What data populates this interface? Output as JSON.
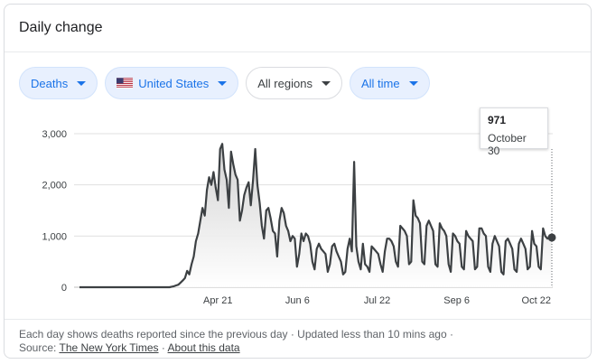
{
  "header": {
    "title": "Daily change"
  },
  "filters": {
    "metric": "Deaths",
    "country": "United States",
    "region": "All regions",
    "range": "All time"
  },
  "tooltip": {
    "value": "971",
    "date": "October 30"
  },
  "footer": {
    "line1": "Each day shows deaths reported since the previous day · Updated less than 10 mins ago ·",
    "source_label": "Source:",
    "source_link": "The New York Times",
    "sep": "·",
    "about_link": "About this data"
  },
  "colors": {
    "line": "#3c4043",
    "fill_top": "#d5d5d5",
    "fill_bottom": "#ffffff",
    "grid": "#e0e0e0",
    "accent": "#1a73e8"
  },
  "chart_data": {
    "type": "area",
    "x_ticks": [
      "Apr 21",
      "Jun 6",
      "Jul 22",
      "Sep 6",
      "Oct 22"
    ],
    "y_ticks": [
      "0",
      "1,000",
      "2,000",
      "3,000"
    ],
    "ylim": [
      0,
      3000
    ],
    "x_start": "2020-02-01",
    "x_end": "2020-10-31",
    "values": [
      0,
      0,
      0,
      0,
      0,
      0,
      0,
      0,
      0,
      0,
      0,
      0,
      0,
      0,
      0,
      0,
      0,
      0,
      0,
      0,
      0,
      0,
      0,
      0,
      0,
      0,
      0,
      0,
      0,
      0,
      0,
      0,
      0,
      0,
      0,
      0,
      0,
      0,
      0,
      0,
      0,
      0,
      10,
      20,
      35,
      50,
      90,
      130,
      180,
      320,
      250,
      450,
      600,
      900,
      1050,
      1300,
      1550,
      1400,
      1900,
      2150,
      2000,
      2250,
      1950,
      1700,
      2700,
      2800,
      2300,
      2100,
      1550,
      2650,
      2400,
      2200,
      2100,
      1300,
      1500,
      1800,
      1950,
      2050,
      1600,
      2100,
      2700,
      2000,
      1650,
      1200,
      950,
      1500,
      1550,
      1350,
      1100,
      1050,
      600,
      1300,
      1550,
      1450,
      1200,
      1100,
      900,
      1000,
      950,
      400,
      650,
      1050,
      900,
      1050,
      1000,
      850,
      500,
      350,
      750,
      850,
      750,
      700,
      650,
      300,
      450,
      800,
      850,
      700,
      600,
      500,
      250,
      300,
      750,
      950,
      700,
      2450,
      800,
      500,
      350,
      850,
      450,
      400,
      300,
      800,
      750,
      700,
      650,
      450,
      300,
      700,
      950,
      950,
      900,
      800,
      500,
      400,
      1200,
      1150,
      1100,
      1000,
      450,
      500,
      1700,
      1400,
      1350,
      1250,
      500,
      450,
      1200,
      1300,
      1200,
      1100,
      450,
      400,
      1250,
      1150,
      1100,
      1000,
      450,
      300,
      1050,
      1000,
      900,
      850,
      400,
      350,
      1100,
      1000,
      950,
      900,
      350,
      400,
      1150,
      1150,
      1050,
      1000,
      400,
      300,
      850,
      1000,
      900,
      800,
      300,
      250,
      900,
      950,
      850,
      750,
      350,
      300,
      850,
      950,
      850,
      750,
      350,
      400,
      1100,
      850,
      800,
      400,
      350,
      1150,
      1000,
      950,
      980,
      971
    ]
  }
}
